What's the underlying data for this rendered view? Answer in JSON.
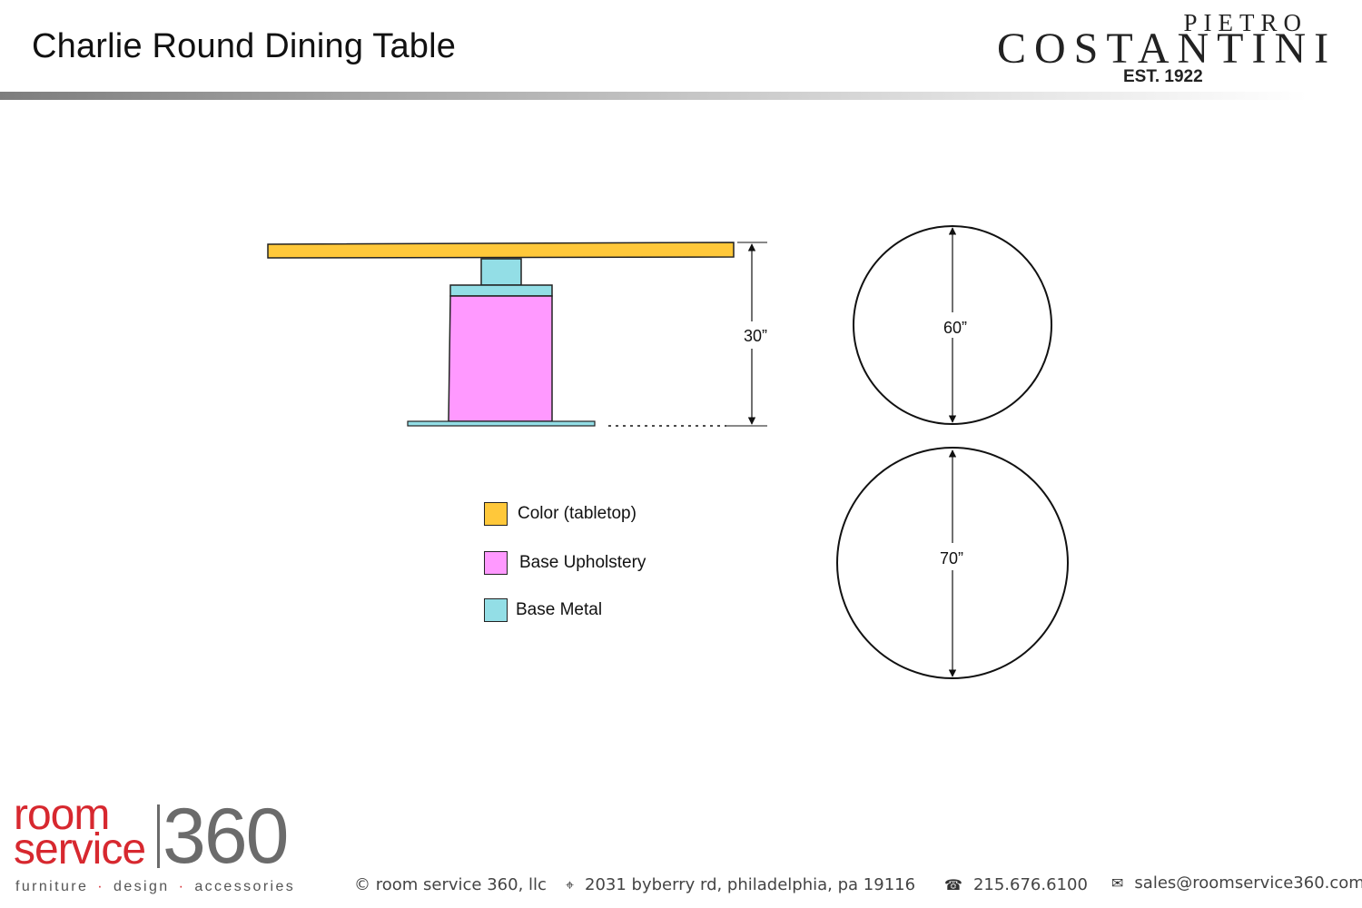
{
  "header": {
    "title": "Charlie Round Dining Table",
    "brand": {
      "top": "PIETRO",
      "main": "COSTANTINI",
      "established": "EST. 1922"
    }
  },
  "diagram": {
    "height_label": "30”",
    "top_view_small_label": "60”",
    "top_view_large_label": "70”"
  },
  "legend": {
    "items": [
      {
        "label": "Color (tabletop)",
        "color": "#FFC83A"
      },
      {
        "label": "Base Upholstery",
        "color": "#FF99FF"
      },
      {
        "label": "Base Metal",
        "color": "#93DEE6"
      }
    ]
  },
  "footer": {
    "logo": {
      "room": "room",
      "service": "service",
      "number": "360",
      "tagline": [
        "furniture",
        "design",
        "accessories"
      ]
    },
    "copyright": "© room service 360, llc",
    "address": "2031 byberry rd, philadelphia, pa 19116",
    "phone": "215.676.6100",
    "email": "sales@roomservice360.com",
    "icons": {
      "address": "map-pin-icon",
      "phone": "phone-icon",
      "email": "envelope-icon"
    }
  }
}
